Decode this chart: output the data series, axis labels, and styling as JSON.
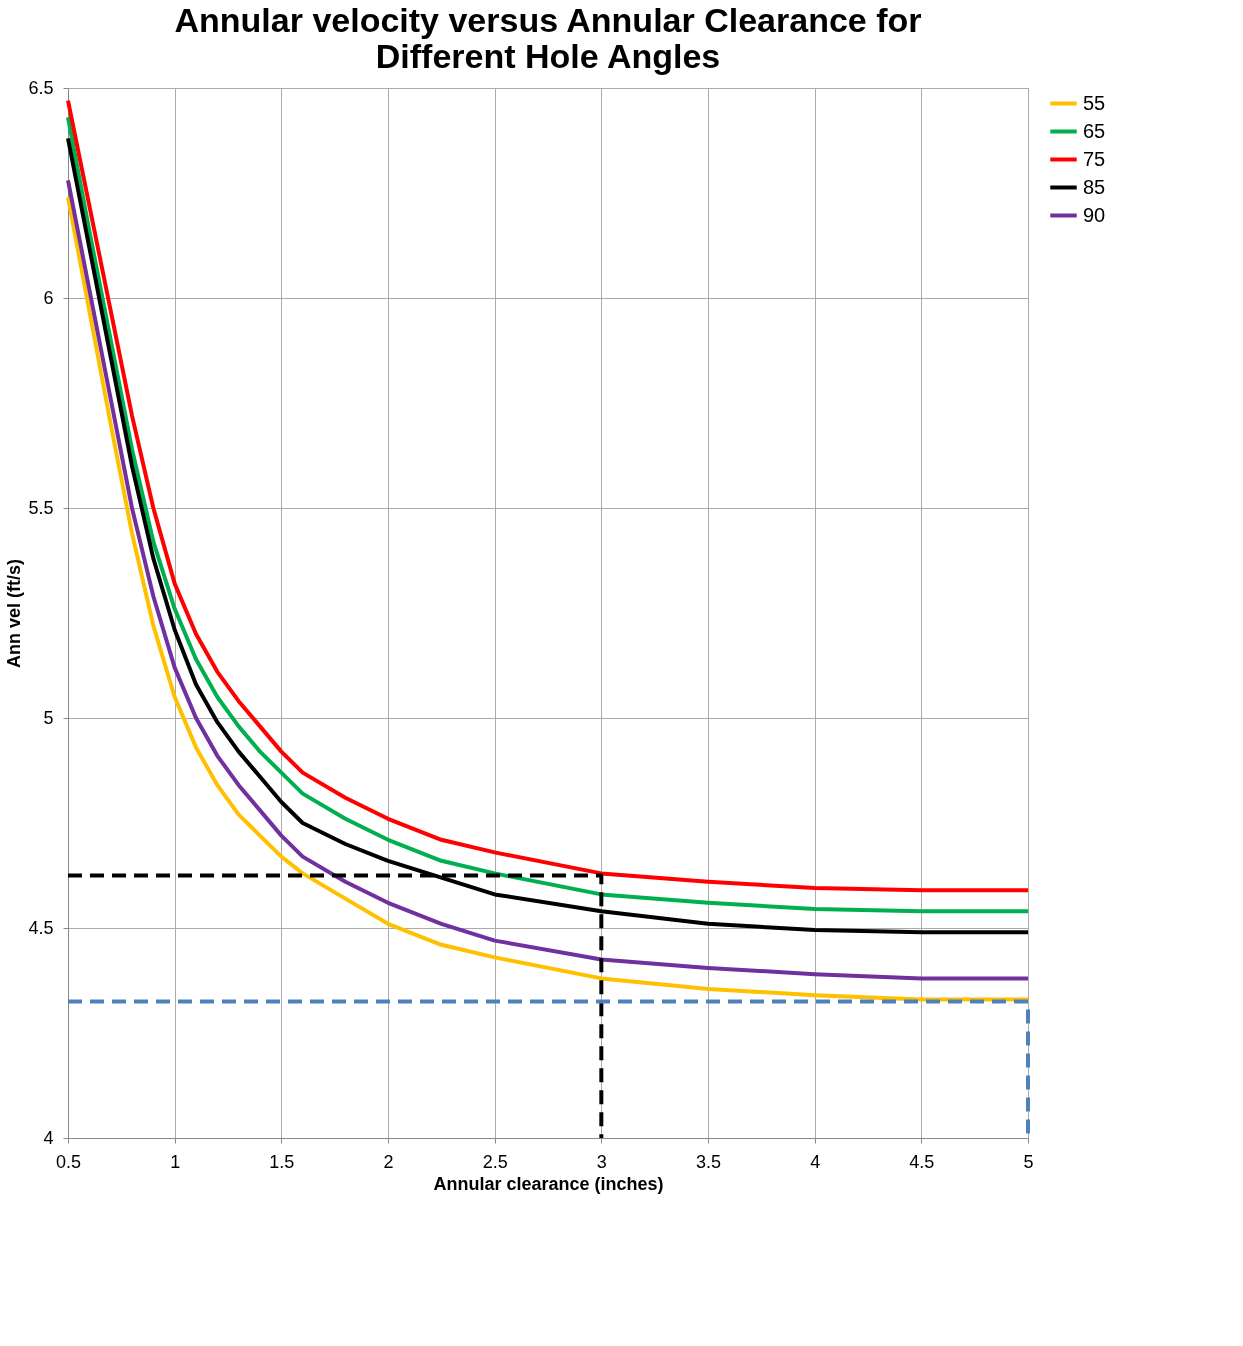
{
  "chart_data": {
    "type": "line",
    "title": "Annular velocity versus Annular Clearance for Different Hole Angles",
    "xlabel": "Annular clearance (inches)",
    "ylabel": "Ann vel (ft/s)",
    "x": [
      0.5,
      0.6,
      0.7,
      0.8,
      0.9,
      1.0,
      1.1,
      1.2,
      1.3,
      1.4,
      1.5,
      1.6,
      1.8,
      2.0,
      2.25,
      2.5,
      3,
      3.5,
      4,
      4.5,
      5
    ],
    "series": [
      {
        "name": "55",
        "color": "#ffc000",
        "values": [
          6.24,
          5.97,
          5.7,
          5.44,
          5.22,
          5.05,
          4.93,
          4.84,
          4.77,
          4.72,
          4.67,
          4.63,
          4.57,
          4.51,
          4.46,
          4.43,
          4.38,
          4.355,
          4.34,
          4.33,
          4.33
        ]
      },
      {
        "name": "65",
        "color": "#00b050",
        "values": [
          6.43,
          6.16,
          5.9,
          5.64,
          5.42,
          5.26,
          5.14,
          5.05,
          4.98,
          4.92,
          4.87,
          4.82,
          4.76,
          4.71,
          4.66,
          4.63,
          4.58,
          4.56,
          4.545,
          4.54,
          4.54
        ]
      },
      {
        "name": "75",
        "color": "#ff0000",
        "values": [
          6.47,
          6.22,
          5.97,
          5.72,
          5.5,
          5.32,
          5.2,
          5.11,
          5.04,
          4.98,
          4.92,
          4.87,
          4.81,
          4.76,
          4.71,
          4.68,
          4.63,
          4.61,
          4.595,
          4.59,
          4.59
        ]
      },
      {
        "name": "85",
        "color": "#000000",
        "values": [
          6.38,
          6.12,
          5.86,
          5.6,
          5.38,
          5.21,
          5.08,
          4.99,
          4.92,
          4.86,
          4.8,
          4.75,
          4.7,
          4.66,
          4.62,
          4.58,
          4.54,
          4.51,
          4.495,
          4.49,
          4.49
        ]
      },
      {
        "name": "90",
        "color": "#7030a0",
        "values": [
          6.28,
          6.02,
          5.76,
          5.5,
          5.29,
          5.12,
          5.0,
          4.91,
          4.84,
          4.78,
          4.72,
          4.67,
          4.61,
          4.56,
          4.51,
          4.47,
          4.425,
          4.405,
          4.39,
          4.38,
          4.38
        ]
      },
      {
        "color": "#000000",
        "line_style": "dashed",
        "x": [
          0.5,
          3,
          3
        ],
        "values": [
          4.625,
          4.625,
          4.0
        ]
      },
      {
        "color": "#4f81bd",
        "line_style": "dashed",
        "x": [
          0.5,
          5,
          5
        ],
        "values": [
          4.325,
          4.325,
          4.0
        ]
      }
    ],
    "xlim": [
      0.5,
      5
    ],
    "xticks": [
      0.5,
      1,
      1.5,
      2,
      2.5,
      3,
      3.5,
      4,
      4.5,
      5
    ],
    "ylim": [
      4,
      6.5
    ],
    "yticks": [
      4,
      4.5,
      5,
      5.5,
      6,
      6.5
    ],
    "grid": true,
    "legend": "right",
    "marker": "none",
    "line_style": "solid"
  }
}
